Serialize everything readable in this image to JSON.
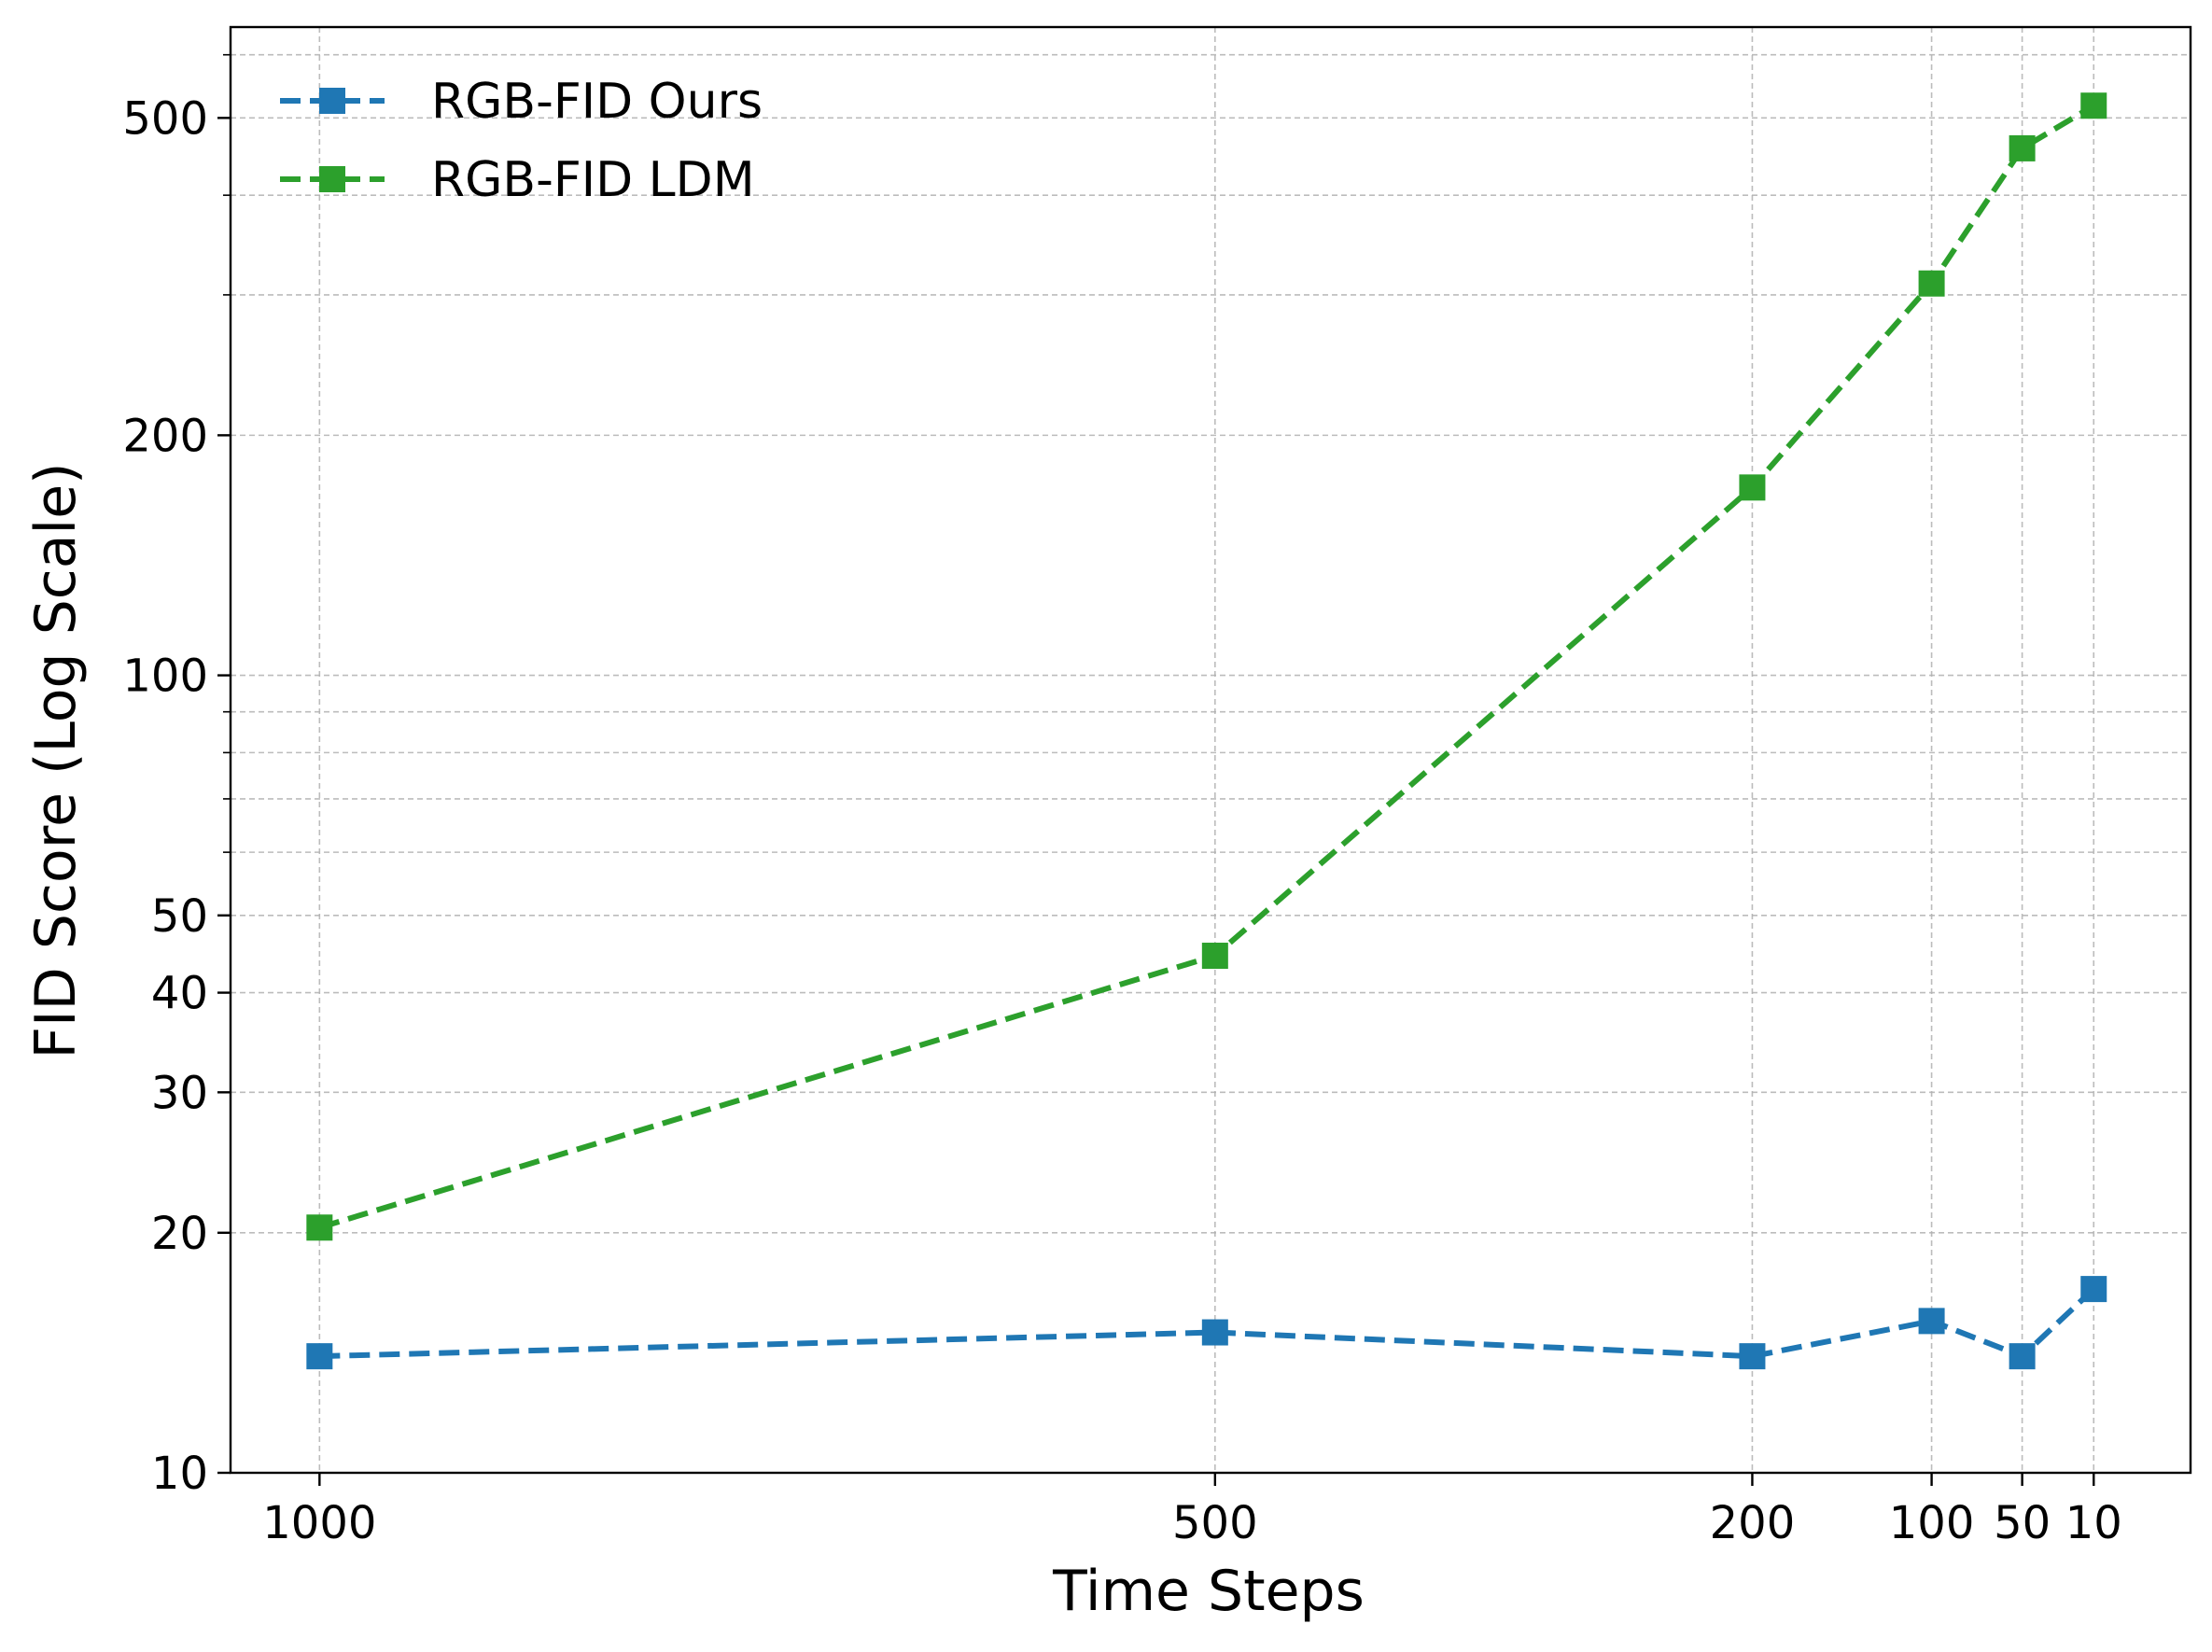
{
  "chart_data": {
    "type": "line",
    "title": "",
    "xlabel": "Time Steps",
    "ylabel": "FID Score (Log Scale)",
    "yscale": "log",
    "ylim": [
      10,
      650
    ],
    "grid": true,
    "legend_position": "top-left",
    "x_categories": [
      "1000",
      "500",
      "200",
      "100",
      "50",
      "10"
    ],
    "y_ticks": [
      10,
      20,
      30,
      40,
      50,
      100,
      200,
      500
    ],
    "y_tick_labels": [
      "10",
      "20",
      "30",
      "40",
      "50",
      "100",
      "200",
      "500"
    ],
    "series": [
      {
        "name": "RGB-FID Ours",
        "color": "#1f77b4",
        "line_style": "dashed",
        "marker": "square",
        "values": [
          14.0,
          15.0,
          14.0,
          15.5,
          14.0,
          17.0
        ]
      },
      {
        "name": "RGB-FID LDM",
        "color": "#2ca02c",
        "line_style": "dashed",
        "marker": "square",
        "values": [
          20.3,
          44.5,
          172,
          310,
          458,
          518
        ]
      }
    ]
  }
}
